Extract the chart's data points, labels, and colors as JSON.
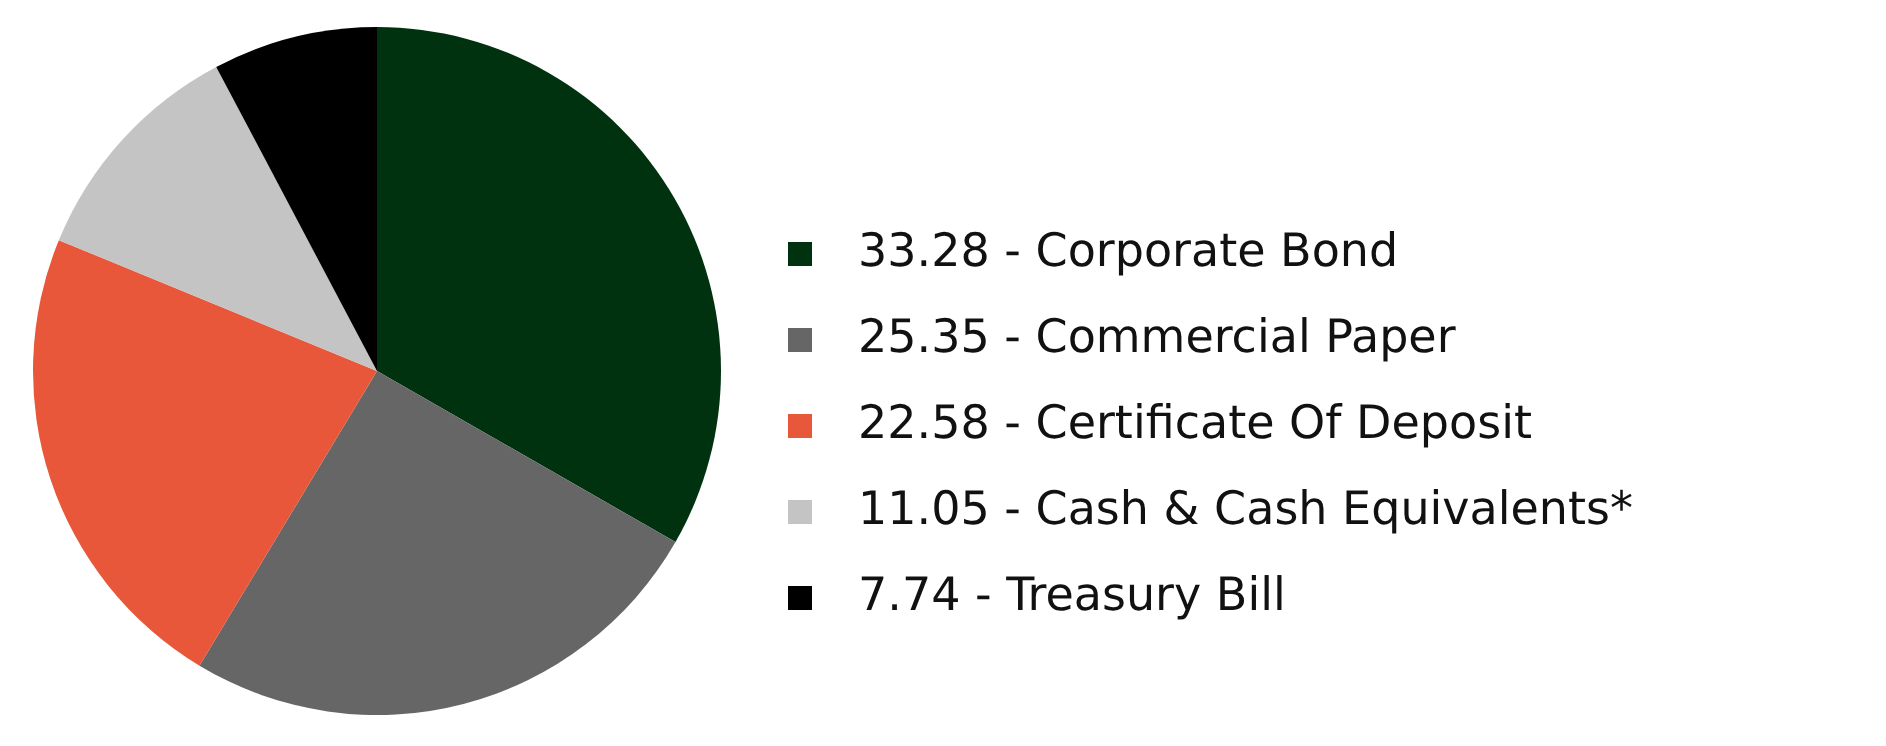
{
  "chart_data": {
    "type": "pie",
    "categories": [
      "33.28 - Corporate Bond",
      "25.35 - Commercial Paper",
      "22.58 - Certificate Of Deposit",
      "11.05 - Cash & Cash Equivalents*",
      "7.74 - Treasury Bill"
    ],
    "values": [
      33.28,
      25.35,
      22.58,
      11.05,
      7.74
    ],
    "colors": [
      "#003210",
      "#666666",
      "#e8573a",
      "#c4c4c4",
      "#000000"
    ],
    "legend": "right"
  }
}
